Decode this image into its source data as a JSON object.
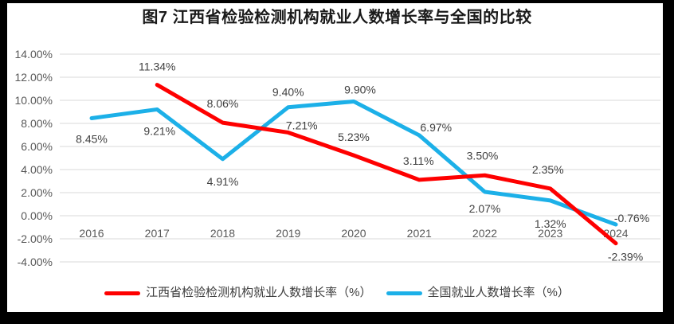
{
  "title": "图7 江西省检验检测机构就业人数增长率与全国的比较",
  "colors": {
    "frame": "#000000",
    "panel": "#ffffff",
    "gridline": "#d9d9d9",
    "axis_text": "#595959",
    "data_label_text": "#404040",
    "series_red": "#fe0000",
    "series_blue": "#1cb0e8"
  },
  "chart_data": {
    "type": "line",
    "title": "图7 江西省检验检测机构就业人数增长率与全国的比较",
    "categories": [
      "2016",
      "2017",
      "2018",
      "2019",
      "2020",
      "2021",
      "2022",
      "2023",
      "2024"
    ],
    "series": [
      {
        "name": "江西省检验检测机构就业人数增长率（%）",
        "color": "#fe0000",
        "values": [
          null,
          11.34,
          8.06,
          7.21,
          5.23,
          3.11,
          3.5,
          2.35,
          -2.39
        ],
        "labels": [
          null,
          "11.34%",
          "8.06%",
          "7.21%",
          "5.23%",
          "3.11%",
          "3.50%",
          "2.35%",
          "-2.39%"
        ]
      },
      {
        "name": "全国就业人数增长率（%）",
        "color": "#1cb0e8",
        "values": [
          8.45,
          9.21,
          4.91,
          9.4,
          9.9,
          6.97,
          2.07,
          1.32,
          -0.76
        ],
        "labels": [
          "8.45%",
          "9.21%",
          "4.91%",
          "9.40%",
          "9.90%",
          "6.97%",
          "2.07%",
          "1.32%",
          "-0.76%"
        ]
      }
    ],
    "y_axis": {
      "tick_values": [
        14,
        12,
        10,
        8,
        6,
        4,
        2,
        0,
        -2,
        -4
      ],
      "tick_labels": [
        "14.00%",
        "12.00%",
        "10.00%",
        "8.00%",
        "6.00%",
        "4.00%",
        "2.00%",
        "0.00%",
        "-2.00%",
        "-4.00%"
      ],
      "min": -4,
      "max": 14,
      "step": 2
    },
    "xlabel": "",
    "ylabel": "",
    "grid": true,
    "legend_position": "bottom"
  }
}
